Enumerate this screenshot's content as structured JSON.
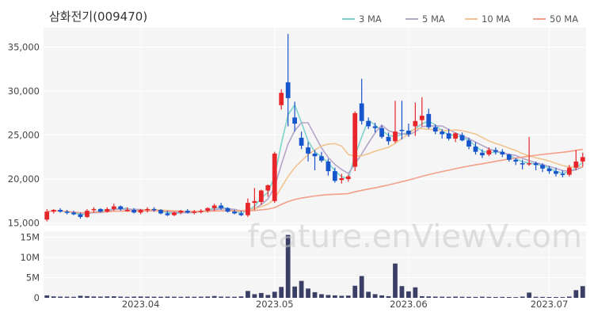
{
  "chart_data": {
    "type": "candlestick",
    "title": "삼화전기(009470)",
    "watermark": "feature.enViewV.com",
    "legend": {
      "placement": "top-right",
      "items": [
        {
          "label": "3 MA",
          "color": "#7fd3cf"
        },
        {
          "label": "5 MA",
          "color": "#b4a4c9"
        },
        {
          "label": "10 MA",
          "color": "#f2c48f"
        },
        {
          "label": "50 MA",
          "color": "#f2a08a"
        }
      ]
    },
    "colors": {
      "up": "#e8262a",
      "down": "#1655cc",
      "volume": "#3b3f66",
      "background": "#f5f5f5"
    },
    "price_axis": {
      "ticks": [
        15000,
        20000,
        25000,
        30000,
        35000
      ],
      "tick_labels": [
        "15,000",
        "20,000",
        "25,000",
        "30,000",
        "35,000"
      ],
      "ylim": [
        14700,
        37200
      ]
    },
    "volume_axis": {
      "ticks": [
        0,
        5000000,
        10000000,
        15000000
      ],
      "tick_labels": [
        "0",
        "5M",
        "10M",
        "15M"
      ],
      "ylim": [
        0,
        16500000
      ]
    },
    "x_axis": {
      "tick_labels": [
        "2023.04",
        "2023.05",
        "2023.06",
        "2023.07"
      ],
      "tick_dates": [
        "2023-04-03",
        "2023-05-02",
        "2023-06-01",
        "2023-07-03"
      ]
    },
    "dates": [
      "2023-03-14",
      "2023-03-15",
      "2023-03-16",
      "2023-03-17",
      "2023-03-20",
      "2023-03-21",
      "2023-03-22",
      "2023-03-23",
      "2023-03-24",
      "2023-03-27",
      "2023-03-28",
      "2023-03-29",
      "2023-03-30",
      "2023-03-31",
      "2023-04-03",
      "2023-04-04",
      "2023-04-05",
      "2023-04-06",
      "2023-04-07",
      "2023-04-10",
      "2023-04-11",
      "2023-04-12",
      "2023-04-13",
      "2023-04-14",
      "2023-04-17",
      "2023-04-18",
      "2023-04-19",
      "2023-04-20",
      "2023-04-21",
      "2023-04-24",
      "2023-04-25",
      "2023-04-26",
      "2023-04-27",
      "2023-04-28",
      "2023-05-02",
      "2023-05-03",
      "2023-05-04",
      "2023-05-08",
      "2023-05-09",
      "2023-05-10",
      "2023-05-11",
      "2023-05-12",
      "2023-05-15",
      "2023-05-16",
      "2023-05-17",
      "2023-05-18",
      "2023-05-19",
      "2023-05-22",
      "2023-05-23",
      "2023-05-24",
      "2023-05-25",
      "2023-05-26",
      "2023-05-30",
      "2023-05-31",
      "2023-06-01",
      "2023-06-02",
      "2023-06-05",
      "2023-06-07",
      "2023-06-08",
      "2023-06-09",
      "2023-06-12",
      "2023-06-13",
      "2023-06-14",
      "2023-06-15",
      "2023-06-16",
      "2023-06-19",
      "2023-06-20",
      "2023-06-21",
      "2023-06-22",
      "2023-06-23",
      "2023-06-26",
      "2023-06-27",
      "2023-06-28",
      "2023-06-29",
      "2023-06-30",
      "2023-07-03",
      "2023-07-04",
      "2023-07-05",
      "2023-07-06",
      "2023-07-07",
      "2023-07-10"
    ],
    "ohlc": [
      [
        15400,
        16600,
        15200,
        16300
      ],
      [
        16300,
        16600,
        16100,
        16500
      ],
      [
        16500,
        16700,
        16200,
        16300
      ],
      [
        16300,
        16500,
        16000,
        16200
      ],
      [
        16200,
        16400,
        15900,
        16000
      ],
      [
        16000,
        16200,
        15500,
        15700
      ],
      [
        15700,
        16600,
        15600,
        16400
      ],
      [
        16500,
        16800,
        16200,
        16600
      ],
      [
        16600,
        16700,
        16200,
        16300
      ],
      [
        16300,
        16800,
        16200,
        16600
      ],
      [
        16600,
        17200,
        16400,
        16900
      ],
      [
        16900,
        17000,
        16400,
        16600
      ],
      [
        16500,
        16800,
        16300,
        16500
      ],
      [
        16500,
        16700,
        16100,
        16200
      ],
      [
        16200,
        16600,
        16000,
        16500
      ],
      [
        16500,
        16800,
        16200,
        16600
      ],
      [
        16600,
        16800,
        16300,
        16500
      ],
      [
        16500,
        16600,
        16000,
        16100
      ],
      [
        16100,
        16400,
        15800,
        15900
      ],
      [
        15900,
        16300,
        15800,
        16200
      ],
      [
        16200,
        16500,
        16000,
        16400
      ],
      [
        16400,
        16600,
        16100,
        16200
      ],
      [
        16200,
        16500,
        16000,
        16300
      ],
      [
        16300,
        16600,
        16100,
        16400
      ],
      [
        16400,
        16800,
        16200,
        16700
      ],
      [
        16700,
        17200,
        16400,
        17000
      ],
      [
        17000,
        17300,
        16500,
        16700
      ],
      [
        16700,
        16800,
        16200,
        16300
      ],
      [
        16300,
        16500,
        16000,
        16100
      ],
      [
        16100,
        16400,
        15800,
        15900
      ],
      [
        15900,
        17800,
        15700,
        17300
      ],
      [
        17300,
        19000,
        16500,
        17500
      ],
      [
        17400,
        18800,
        17100,
        18700
      ],
      [
        18700,
        19400,
        18000,
        19300
      ],
      [
        17500,
        23100,
        17300,
        22900
      ],
      [
        28400,
        30200,
        27900,
        29800
      ],
      [
        31000,
        36500,
        26000,
        29200
      ],
      [
        27000,
        28800,
        25400,
        26300
      ],
      [
        24700,
        25400,
        23400,
        23800
      ],
      [
        23600,
        24200,
        22000,
        22900
      ],
      [
        22900,
        23300,
        21000,
        22600
      ],
      [
        22600,
        23100,
        21900,
        22100
      ],
      [
        22000,
        22300,
        20400,
        20900
      ],
      [
        20900,
        21300,
        19600,
        19800
      ],
      [
        19900,
        20600,
        19500,
        20100
      ],
      [
        20000,
        20500,
        19700,
        20300
      ],
      [
        21400,
        27700,
        20900,
        27500
      ],
      [
        28600,
        31400,
        26200,
        26600
      ],
      [
        26600,
        27000,
        25700,
        26000
      ],
      [
        26000,
        26400,
        25300,
        25800
      ],
      [
        25800,
        26100,
        24600,
        24800
      ],
      [
        24800,
        25300,
        23900,
        24300
      ],
      [
        24300,
        28900,
        24100,
        25400
      ],
      [
        25600,
        28900,
        24500,
        25500
      ],
      [
        25500,
        26300,
        24800,
        25100
      ],
      [
        26000,
        28700,
        24900,
        26600
      ],
      [
        26700,
        29300,
        26000,
        27200
      ],
      [
        27400,
        28000,
        25700,
        25900
      ],
      [
        25900,
        26200,
        25100,
        25400
      ],
      [
        25400,
        25700,
        24600,
        25100
      ],
      [
        25200,
        25700,
        24400,
        24600
      ],
      [
        24600,
        25300,
        24200,
        25200
      ],
      [
        25000,
        25300,
        24300,
        24400
      ],
      [
        24400,
        24700,
        23400,
        23700
      ],
      [
        23700,
        24200,
        22800,
        23100
      ],
      [
        23000,
        23400,
        22400,
        22700
      ],
      [
        22800,
        23600,
        22600,
        23300
      ],
      [
        23300,
        23600,
        22800,
        23100
      ],
      [
        23100,
        23400,
        22500,
        22800
      ],
      [
        22800,
        22900,
        22000,
        22200
      ],
      [
        22200,
        22400,
        21600,
        22000
      ],
      [
        21800,
        22200,
        21100,
        21700
      ],
      [
        21700,
        24800,
        21500,
        21800
      ],
      [
        21800,
        22000,
        21000,
        21600
      ],
      [
        21600,
        21800,
        20800,
        21200
      ],
      [
        21200,
        21500,
        20600,
        20900
      ],
      [
        20900,
        21300,
        20300,
        20600
      ],
      [
        20600,
        21000,
        20200,
        20500
      ],
      [
        20500,
        21600,
        20300,
        21300
      ],
      [
        21300,
        23300,
        21000,
        22000
      ],
      [
        22000,
        23000,
        21400,
        22500
      ]
    ],
    "volume": [
      600000,
      350000,
      300000,
      280000,
      250000,
      500000,
      420000,
      330000,
      300000,
      350000,
      380000,
      300000,
      250000,
      300000,
      330000,
      300000,
      280000,
      260000,
      300000,
      270000,
      250000,
      280000,
      260000,
      280000,
      320000,
      450000,
      300000,
      280000,
      260000,
      350000,
      1700000,
      900000,
      1200000,
      700000,
      1500000,
      2700000,
      15600000,
      2800000,
      4200000,
      2300000,
      1400000,
      900000,
      700000,
      600000,
      500000,
      550000,
      3000000,
      5400000,
      1500000,
      900000,
      600000,
      400000,
      8500000,
      2900000,
      1600000,
      2600000,
      400000,
      350000,
      300000,
      280000,
      250000,
      300000,
      260000,
      240000,
      220000,
      280000,
      230000,
      200000,
      220000,
      200000,
      180000,
      300000,
      1300000,
      250000,
      220000,
      200000,
      190000,
      180000,
      300000,
      1900000,
      2900000
    ],
    "ma_periods": [
      3,
      5,
      10,
      50
    ]
  }
}
